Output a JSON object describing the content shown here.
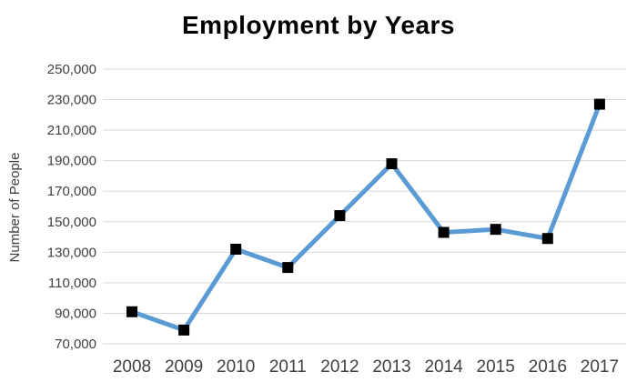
{
  "chart_data": {
    "type": "line",
    "title": "Employment by Years",
    "xlabel": "",
    "ylabel": "Number of People",
    "categories": [
      "2008",
      "2009",
      "2010",
      "2011",
      "2012",
      "2013",
      "2014",
      "2015",
      "2016",
      "2017"
    ],
    "series": [
      {
        "name": "Number of People",
        "values": [
          91000,
          79000,
          132000,
          120000,
          154000,
          188000,
          143000,
          145000,
          139000,
          227000
        ]
      }
    ],
    "ylim": [
      70000,
      250000
    ],
    "ytick_step": 20000,
    "ytick_values": [
      70000,
      90000,
      110000,
      130000,
      150000,
      170000,
      190000,
      210000,
      230000,
      250000
    ],
    "ytick_labels": [
      "70,000",
      "90,000",
      "110,000",
      "130,000",
      "150,000",
      "170,000",
      "190,000",
      "210,000",
      "230,000",
      "250,000"
    ],
    "grid": true,
    "legend_position": "none",
    "line_color": "#5B9BD5",
    "marker_shape": "square",
    "marker_color": "#000000",
    "gridline_color": "#d9d9d9",
    "axis_label_color": "#404040",
    "title_color": "#000000",
    "background_color": "#ffffff"
  }
}
